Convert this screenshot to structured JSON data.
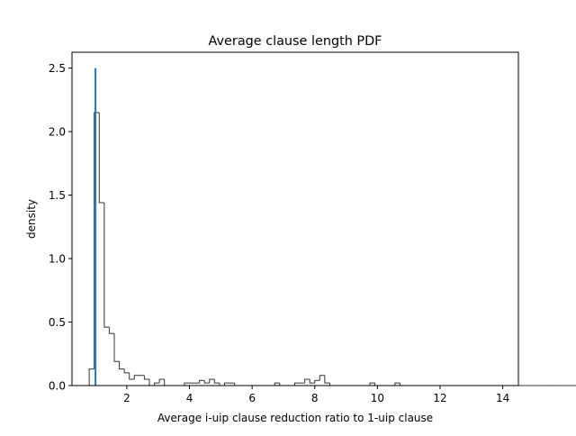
{
  "chart_data": {
    "type": "histogram",
    "title": "Average clause length PDF",
    "xlabel": "Average i-uip clause reduction ratio to 1-uip clause",
    "ylabel": "density",
    "xlim": [
      0.25,
      14.5
    ],
    "ylim": [
      0,
      2.625
    ],
    "x_ticks": [
      2,
      4,
      6,
      8,
      10,
      12,
      14
    ],
    "y_ticks": [
      0.0,
      0.5,
      1.0,
      1.5,
      2.0,
      2.5
    ],
    "x_tick_labels": [
      "2",
      "4",
      "6",
      "8",
      "10",
      "12",
      "14"
    ],
    "y_tick_labels": [
      "0.0",
      "0.5",
      "1.0",
      "1.5",
      "2.0",
      "2.5"
    ],
    "grid": false,
    "legend": "none",
    "histogram": {
      "style": "step",
      "bin_start": 0.8,
      "bin_width": 0.16,
      "color": "#333333",
      "densities": [
        0.13,
        2.15,
        1.44,
        0.46,
        0.41,
        0.19,
        0.13,
        0.1,
        0.05,
        0.08,
        0.08,
        0.05,
        0.0,
        0.02,
        0.05,
        0.0,
        0.0,
        0.0,
        0.0,
        0.02,
        0.02,
        0.02,
        0.04,
        0.02,
        0.05,
        0.02,
        0.0,
        0.02,
        0.02,
        0.0,
        0.0,
        0.0,
        0.0,
        0.0,
        0.0,
        0.0,
        0.0,
        0.02,
        0.0,
        0.0,
        0.0,
        0.02,
        0.02,
        0.05,
        0.02,
        0.04,
        0.08,
        0.02,
        0.0,
        0.0,
        0.0,
        0.0,
        0.0,
        0.0,
        0.0,
        0.0,
        0.02,
        0.0,
        0.0,
        0.0,
        0.0,
        0.02,
        0.0,
        0.0,
        0.0,
        0.0,
        0.0,
        0.0,
        0.0,
        0.0,
        0.0,
        0.0,
        0.0,
        0.0,
        0.0,
        0.0,
        0.0,
        0.0,
        0.0,
        0.0,
        0.0,
        0.0,
        0.0,
        0.0,
        0.0,
        0.0,
        0.0,
        0.0,
        0.0,
        0.0,
        0.0,
        0.0,
        0.0,
        0.0,
        0.0,
        0.0,
        0.0,
        0.0,
        0.0,
        0.0,
        0.0,
        0.0,
        0.0,
        0.0,
        0.0,
        0.0,
        0.02,
        0.0,
        0.0,
        0.0,
        0.0,
        0.0,
        0.0,
        0.0,
        0.0,
        0.0,
        0.0,
        0.0,
        0.0,
        0.0,
        0.0,
        0.0,
        0.0,
        0.0,
        0.0,
        0.0,
        0.0,
        0.0,
        0.0,
        0.0,
        0.0,
        0.02,
        0.0
      ]
    },
    "vertical_line": {
      "x": 1.0,
      "y_from": 0.0,
      "y_to": 2.5,
      "color": "#1f77b4"
    }
  }
}
